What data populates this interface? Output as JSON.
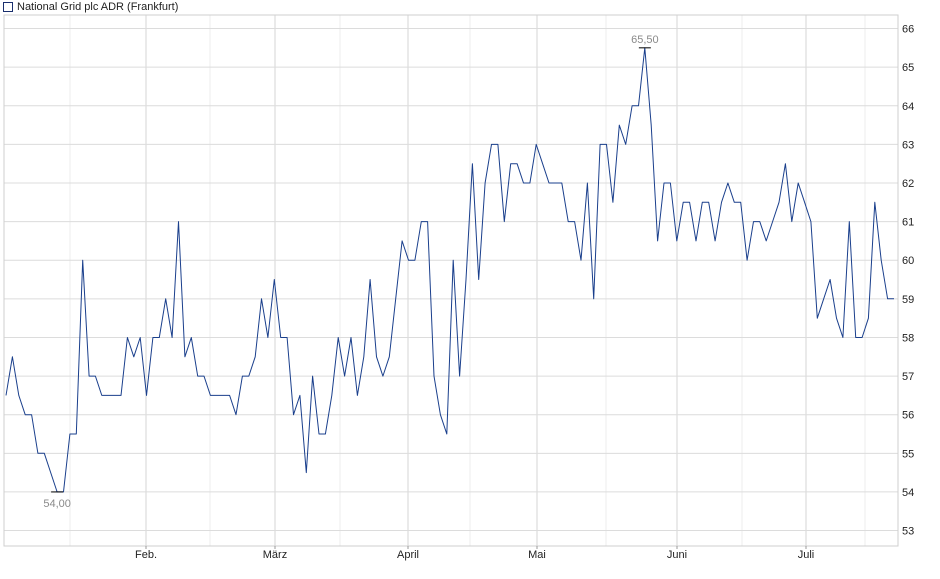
{
  "chart_data": {
    "type": "line",
    "title": "National Grid plc ADR (Frankfurt)",
    "legend": {
      "placement": "top-left",
      "entries": [
        "National Grid plc ADR (Frankfurt)"
      ]
    },
    "xlabel": "",
    "ylabel": "",
    "x_tick_labels": [
      "Feb.",
      "März",
      "April",
      "Mai",
      "Juni",
      "Juli"
    ],
    "y_ticks": [
      53,
      54,
      55,
      56,
      57,
      58,
      59,
      60,
      61,
      62,
      63,
      64,
      65,
      66
    ],
    "ylim": [
      52.6,
      66.35
    ],
    "grid": true,
    "series": [
      {
        "name": "National Grid plc ADR (Frankfurt)",
        "color": "#1a3f8c",
        "values": [
          56.5,
          57.5,
          56.5,
          56,
          56,
          55,
          55,
          54.5,
          54,
          54,
          55.5,
          55.5,
          60,
          57,
          57,
          56.5,
          56.5,
          56.5,
          56.5,
          58,
          57.5,
          58,
          56.5,
          58,
          58,
          59,
          58,
          61,
          57.5,
          58,
          57,
          57,
          56.5,
          56.5,
          56.5,
          56.5,
          56,
          57,
          57,
          57.5,
          59,
          58,
          59.5,
          58,
          58,
          56,
          56.5,
          54.5,
          57,
          55.5,
          55.5,
          56.5,
          58,
          57,
          58,
          56.5,
          57.5,
          59.5,
          57.5,
          57,
          57.5,
          59,
          60.5,
          60,
          60,
          61,
          61,
          57,
          56,
          55.5,
          60,
          57,
          59.5,
          62.5,
          59.5,
          62,
          63,
          63,
          61,
          62.5,
          62.5,
          62,
          62,
          63,
          62.5,
          62,
          62,
          62,
          61,
          61,
          60,
          62,
          59,
          63,
          63,
          61.5,
          63.5,
          63,
          64,
          64,
          65.5,
          63.5,
          60.5,
          62,
          62,
          60.5,
          61.5,
          61.5,
          60.5,
          61.5,
          61.5,
          60.5,
          61.5,
          62,
          61.5,
          61.5,
          60,
          61,
          61,
          60.5,
          61,
          61.5,
          62.5,
          61,
          62,
          61.5,
          61,
          58.5,
          59,
          59.5,
          58.5,
          58,
          61,
          58,
          58,
          58.5,
          61.5,
          60,
          59,
          59
        ]
      }
    ],
    "annotations": [
      {
        "type": "min",
        "label": "54,00",
        "value": 54.0
      },
      {
        "type": "max",
        "label": "65,50",
        "value": 65.5
      }
    ]
  }
}
